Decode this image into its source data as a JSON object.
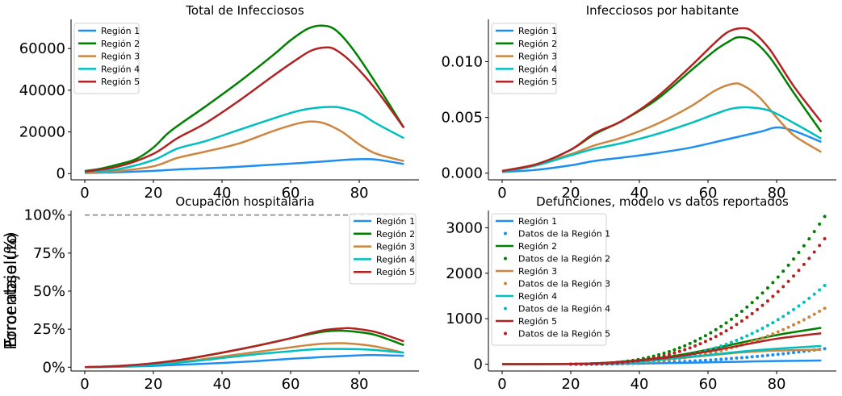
{
  "chart_data": [
    {
      "id": "p1",
      "type": "line",
      "title": "Total de Infecciosos",
      "xlabel": "",
      "ylabel": "",
      "xlim": [
        -4,
        97.4
      ],
      "ylim": [
        -3000,
        74000
      ],
      "xticks": [
        0,
        20,
        40,
        60,
        80
      ],
      "xtick_labels": [
        "0",
        "20",
        "40",
        "60",
        "80"
      ],
      "yticks": [
        0,
        20000,
        40000,
        60000
      ],
      "ytick_labels": [
        "0",
        "20000",
        "40000",
        "60000"
      ],
      "legend": "top-left",
      "series": [
        {
          "name": "Región 1",
          "color": "#1f8ef1",
          "x": [
            0,
            10,
            20,
            27,
            35,
            45,
            55,
            65,
            75,
            80,
            85,
            93
          ],
          "y": [
            300,
            700,
            1300,
            2000,
            2500,
            3300,
            4300,
            5300,
            6500,
            6900,
            6700,
            4600
          ]
        },
        {
          "name": "Región 2",
          "color": "#008000",
          "x": [
            0,
            5,
            10,
            15,
            20,
            24,
            28,
            35,
            45,
            55,
            60,
            65,
            69,
            73,
            78,
            85,
            93
          ],
          "y": [
            1200,
            2500,
            4500,
            7000,
            12500,
            19000,
            24000,
            32000,
            44000,
            57000,
            64000,
            69500,
            71000,
            69000,
            60000,
            43000,
            22000
          ]
        },
        {
          "name": "Región 3",
          "color": "#cd853f",
          "x": [
            0,
            10,
            20,
            27,
            35,
            45,
            55,
            62,
            66,
            70,
            75,
            80,
            85,
            93
          ],
          "y": [
            400,
            1300,
            3500,
            7500,
            10500,
            14500,
            20500,
            24000,
            25000,
            24000,
            20000,
            14000,
            9500,
            6000
          ]
        },
        {
          "name": "Región 4",
          "color": "#00bfbf",
          "x": [
            0,
            10,
            20,
            27,
            35,
            45,
            55,
            62,
            67,
            72,
            75,
            80,
            85,
            93
          ],
          "y": [
            700,
            2200,
            6500,
            12000,
            15500,
            21000,
            26500,
            30000,
            31500,
            32000,
            31500,
            29000,
            24000,
            17000
          ]
        },
        {
          "name": "Región 5",
          "color": "#b22222",
          "x": [
            0,
            10,
            20,
            27,
            35,
            45,
            55,
            62,
            66,
            70,
            73,
            78,
            85,
            93
          ],
          "y": [
            1000,
            3500,
            9500,
            17000,
            24000,
            35000,
            47000,
            55000,
            59000,
            60500,
            59500,
            53000,
            40000,
            22000
          ]
        }
      ]
    },
    {
      "id": "p2",
      "type": "line",
      "title": "Infecciosos por habitante",
      "xlabel": "",
      "ylabel": "",
      "xlim": [
        -4,
        97.4
      ],
      "ylim": [
        -0.0006,
        0.0138
      ],
      "xticks": [
        0,
        20,
        40,
        60,
        80
      ],
      "xtick_labels": [
        "0",
        "20",
        "40",
        "60",
        "80"
      ],
      "yticks": [
        0,
        0.005,
        0.01
      ],
      "ytick_labels": [
        "0.000",
        "0.005",
        "0.010"
      ],
      "legend": "top-left",
      "series": [
        {
          "name": "Región 1",
          "color": "#1f8ef1",
          "x": [
            0,
            10,
            20,
            27,
            35,
            45,
            55,
            65,
            75,
            80,
            85,
            93
          ],
          "y": [
            0.0001,
            0.0003,
            0.0007,
            0.0011,
            0.0014,
            0.0018,
            0.0023,
            0.003,
            0.0037,
            0.0041,
            0.0038,
            0.0028
          ]
        },
        {
          "name": "Región 2",
          "color": "#008000",
          "x": [
            0,
            10,
            20,
            27,
            35,
            45,
            55,
            62,
            66,
            69,
            73,
            78,
            85,
            93
          ],
          "y": [
            0.0002,
            0.0008,
            0.0021,
            0.0035,
            0.0047,
            0.0066,
            0.0092,
            0.011,
            0.0118,
            0.0122,
            0.0119,
            0.0104,
            0.0072,
            0.0037
          ]
        },
        {
          "name": "Región 3",
          "color": "#cd853f",
          "x": [
            0,
            10,
            20,
            27,
            35,
            45,
            55,
            62,
            67,
            70,
            75,
            80,
            85,
            93
          ],
          "y": [
            0.0002,
            0.0008,
            0.0017,
            0.0025,
            0.0032,
            0.0044,
            0.006,
            0.0074,
            0.008,
            0.0079,
            0.0068,
            0.005,
            0.0034,
            0.0019
          ]
        },
        {
          "name": "Región 4",
          "color": "#00bfbf",
          "x": [
            0,
            10,
            20,
            27,
            35,
            45,
            55,
            62,
            67,
            72,
            78,
            85,
            93
          ],
          "y": [
            0.0001,
            0.0007,
            0.0016,
            0.0022,
            0.0027,
            0.0035,
            0.0045,
            0.0053,
            0.0058,
            0.0059,
            0.0056,
            0.0045,
            0.0031
          ]
        },
        {
          "name": "Región 5",
          "color": "#b22222",
          "x": [
            0,
            10,
            20,
            27,
            35,
            45,
            55,
            62,
            66,
            70,
            73,
            78,
            85,
            93
          ],
          "y": [
            0.0002,
            0.0008,
            0.0021,
            0.0036,
            0.0047,
            0.0068,
            0.0096,
            0.0117,
            0.0127,
            0.013,
            0.0127,
            0.0111,
            0.0078,
            0.0046
          ]
        }
      ]
    },
    {
      "id": "p3",
      "type": "line",
      "title": "Ocupación hospitalaria",
      "xlabel": "",
      "ylabel": "Porcentaje (%)",
      "xlim": [
        -4,
        97.4
      ],
      "ylim": [
        -2.5,
        103
      ],
      "xticks": [
        0,
        20,
        40,
        60,
        80
      ],
      "xtick_labels": [
        "0",
        "20",
        "40",
        "60",
        "80"
      ],
      "yticks": [
        0,
        25,
        50,
        75,
        100
      ],
      "ytick_labels": [
        "0%",
        "25%",
        "50%",
        "75%",
        "100%"
      ],
      "legend": "top-right",
      "capacity_line": {
        "y": 100,
        "color": "#808080"
      },
      "series": [
        {
          "name": "Región 1",
          "color": "#1f8ef1",
          "x": [
            0,
            10,
            20,
            30,
            40,
            50,
            60,
            70,
            80,
            85,
            93
          ],
          "y": [
            0,
            0.3,
            0.9,
            1.8,
            2.8,
            4,
            5.5,
            6.8,
            7.8,
            8,
            7.5
          ]
        },
        {
          "name": "Región 2",
          "color": "#008000",
          "x": [
            0,
            10,
            20,
            30,
            40,
            50,
            60,
            65,
            70,
            75,
            80,
            85,
            93
          ],
          "y": [
            0,
            0.8,
            2.5,
            5.5,
            9.5,
            14,
            19,
            21.5,
            23.5,
            24,
            23,
            21,
            14.5
          ]
        },
        {
          "name": "Región 3",
          "color": "#cd853f",
          "x": [
            0,
            10,
            20,
            30,
            40,
            50,
            60,
            65,
            70,
            75,
            80,
            85,
            93
          ],
          "y": [
            0,
            0.5,
            1.8,
            4,
            7,
            10,
            13,
            14.5,
            15.5,
            15.8,
            15,
            13.5,
            9.5
          ]
        },
        {
          "name": "Región 4",
          "color": "#00bfbf",
          "x": [
            0,
            10,
            20,
            30,
            40,
            50,
            60,
            65,
            70,
            75,
            80,
            85,
            93
          ],
          "y": [
            0,
            0.5,
            1.5,
            3.5,
            6,
            8.5,
            10.5,
            11.5,
            12,
            12,
            11.8,
            11.2,
            9.5
          ]
        },
        {
          "name": "Región 5",
          "color": "#b22222",
          "x": [
            0,
            10,
            20,
            30,
            40,
            50,
            60,
            65,
            70,
            75,
            78,
            85,
            93
          ],
          "y": [
            0,
            0.8,
            2.6,
            5.6,
            9.6,
            14,
            19,
            22,
            24.5,
            25.5,
            25.5,
            23,
            17
          ]
        }
      ]
    },
    {
      "id": "p4",
      "type": "line+scatter",
      "title": "Defunciones, modelo vs datos reportados",
      "xlabel": "",
      "ylabel": "Error absoluto",
      "xlim": [
        -4,
        97.4
      ],
      "ylim": [
        -150,
        3380
      ],
      "xticks": [
        0,
        20,
        40,
        60,
        80
      ],
      "xtick_labels": [
        "0",
        "20",
        "40",
        "60",
        "80"
      ],
      "yticks": [
        0,
        1000,
        2000,
        3000
      ],
      "ytick_labels": [
        "0",
        "1000",
        "2000",
        "3000"
      ],
      "legend": "top-left",
      "series": [
        {
          "name": "Región 1",
          "kind": "line",
          "color": "#1f8ef1",
          "x": [
            0,
            20,
            30,
            40,
            50,
            60,
            70,
            80,
            93
          ],
          "y": [
            0,
            0,
            5,
            15,
            25,
            40,
            55,
            70,
            80
          ]
        },
        {
          "name": "Datos de la Región 1",
          "kind": "scatter",
          "color": "#1f8ef1",
          "x_start": 20,
          "x_end": 94,
          "count": 50,
          "y_start": 0,
          "y_end": 340,
          "power": 2.2
        },
        {
          "name": "Región 2",
          "kind": "line",
          "color": "#008000",
          "x": [
            0,
            20,
            30,
            40,
            50,
            60,
            70,
            80,
            93
          ],
          "y": [
            0,
            5,
            30,
            90,
            180,
            320,
            480,
            640,
            800
          ]
        },
        {
          "name": "Datos de la Región 2",
          "kind": "scatter",
          "color": "#008000",
          "x_start": 20,
          "x_end": 94,
          "count": 50,
          "y_start": 0,
          "y_end": 3250,
          "power": 2.6
        },
        {
          "name": "Región 3",
          "kind": "line",
          "color": "#cd853f",
          "x": [
            0,
            20,
            30,
            40,
            50,
            60,
            70,
            80,
            93
          ],
          "y": [
            0,
            5,
            25,
            60,
            120,
            190,
            260,
            300,
            320
          ]
        },
        {
          "name": "Datos de la Región 3",
          "kind": "scatter",
          "color": "#cd853f",
          "x_start": 20,
          "x_end": 94,
          "count": 50,
          "y_start": 0,
          "y_end": 1230,
          "power": 2.7
        },
        {
          "name": "Región 4",
          "kind": "line",
          "color": "#00bfbf",
          "x": [
            0,
            20,
            30,
            40,
            50,
            60,
            70,
            80,
            93
          ],
          "y": [
            0,
            5,
            25,
            70,
            130,
            200,
            280,
            340,
            400
          ]
        },
        {
          "name": "Datos de la Región 4",
          "kind": "scatter",
          "color": "#00bfbf",
          "x_start": 20,
          "x_end": 94,
          "count": 50,
          "y_start": 0,
          "y_end": 1730,
          "power": 2.8
        },
        {
          "name": "Región 5",
          "kind": "line",
          "color": "#b22222",
          "x": [
            0,
            20,
            30,
            40,
            50,
            60,
            70,
            80,
            93
          ],
          "y": [
            0,
            5,
            30,
            80,
            160,
            280,
            420,
            560,
            680
          ]
        },
        {
          "name": "Datos de la Región 5",
          "kind": "scatter",
          "color": "#b22222",
          "x_start": 20,
          "x_end": 94,
          "count": 50,
          "y_start": 0,
          "y_end": 2760,
          "power": 2.7
        }
      ]
    }
  ]
}
